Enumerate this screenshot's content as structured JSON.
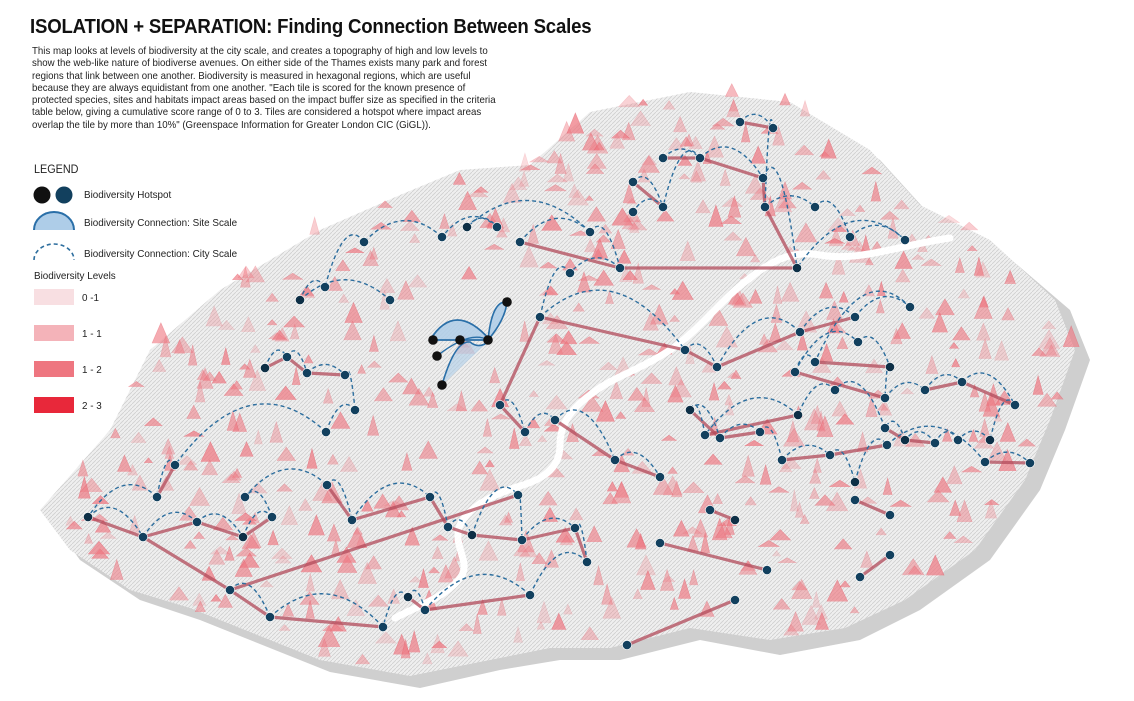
{
  "title": "ISOLATION + SEPARATION: Finding Connection Between Scales",
  "description": "This map looks at levels of biodiversity at the city scale, and creates a topography of high and low levels to show the web-like nature of biodiverse avenues. On either side of the Thames exists many park and forest regions that link between one another. Biodiversity is measured in hexagonal regions, which are useful because they are always equidistant from one another. \"Each tile is scored for the known presence of protected species, sites and habitats impact areas based on the impact buffer size as specified in the criteria table below, giving a cumulative score range of 0 to 3. Tiles are considered a hotspot where impact areas overlap the tile by more than 10%\" (Greenspace Information for Greater London CIC (GiGL)).",
  "legend": {
    "heading": "LEGEND",
    "hotspot_label": "Biodiversity Hotspot",
    "site_scale_label": "Biodiversity Connection: Site Scale",
    "city_scale_label": "Biodiversity Connection: City Scale",
    "levels_heading": "Biodiversity Levels",
    "levels": [
      {
        "label": "0 -1",
        "color": "#f8dfe2"
      },
      {
        "label": "1 - 1",
        "color": "#f4b3b9"
      },
      {
        "label": "1 - 2",
        "color": "#ee7680"
      },
      {
        "label": "2 - 3",
        "color": "#e8283a"
      }
    ]
  },
  "colors": {
    "hotspot_black": "#111111",
    "hotspot_blue": "#12405e",
    "city_connection": "#2d6e9e",
    "site_connection_fill": "#aecde8",
    "site_connection_stroke": "#2a6fa8",
    "corridor": "#b24a5a",
    "river": "#ffffff",
    "terrain_grey": "#d6d6d6",
    "terrain_red": "#ee7680"
  },
  "icons": {
    "hotspot": "filled-circle-icon",
    "site_connection": "half-dome-icon",
    "city_connection": "dashed-arc-icon"
  }
}
